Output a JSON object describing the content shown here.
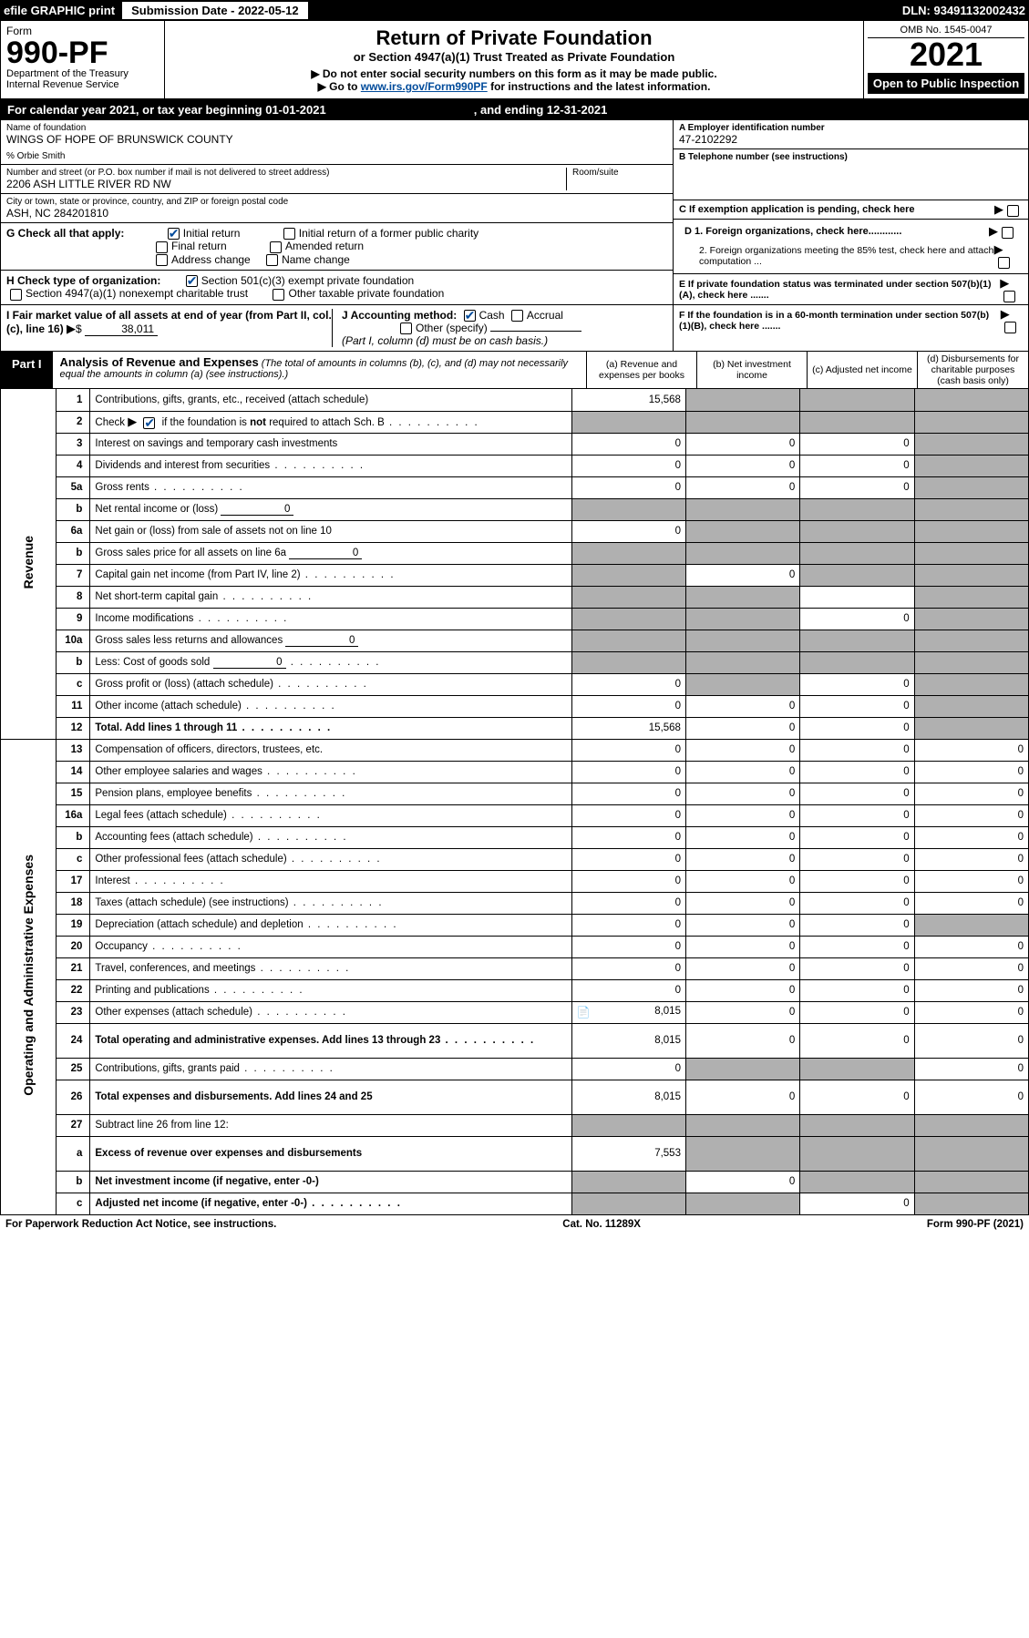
{
  "topbar": {
    "efile": "efile GRAPHIC print",
    "submission_label": "Submission Date - 2022-05-12",
    "dln": "DLN: 93491132002432"
  },
  "header": {
    "form_label": "Form",
    "form_number": "990-PF",
    "dept1": "Department of the Treasury",
    "dept2": "Internal Revenue Service",
    "title": "Return of Private Foundation",
    "subtitle": "or Section 4947(a)(1) Trust Treated as Private Foundation",
    "note1": "▶ Do not enter social security numbers on this form as it may be made public.",
    "note2_pre": "▶ Go to ",
    "note2_link": "www.irs.gov/Form990PF",
    "note2_post": " for instructions and the latest information.",
    "omb": "OMB No. 1545-0047",
    "year": "2021",
    "open": "Open to Public Inspection"
  },
  "calendar": {
    "pre": "For calendar year 2021, or tax year beginning 01-01-2021",
    "mid": ", and ending 12-31-2021"
  },
  "identity": {
    "name_label": "Name of foundation",
    "name_value": "WINGS OF HOPE OF BRUNSWICK COUNTY",
    "care_of": "% Orbie Smith",
    "addr_label": "Number and street (or P.O. box number if mail is not delivered to street address)",
    "room_label": "Room/suite",
    "addr_value": "2206 ASH LITTLE RIVER RD NW",
    "city_label": "City or town, state or province, country, and ZIP or foreign postal code",
    "city_value": "ASH, NC  284201810",
    "ein_label": "A Employer identification number",
    "ein_value": "47-2102292",
    "phone_label": "B Telephone number (see instructions)",
    "c_label": "C If exemption application is pending, check here",
    "d1_label": "D 1. Foreign organizations, check here............",
    "d2_label": "2. Foreign organizations meeting the 85% test, check here and attach computation ...",
    "e_label": "E  If private foundation status was terminated under section 507(b)(1)(A), check here .......",
    "f_label": "F  If the foundation is in a 60-month termination under section 507(b)(1)(B), check here .......",
    "g_label": "G Check all that apply:",
    "g_initial": "Initial return",
    "g_initial_former": "Initial return of a former public charity",
    "g_final": "Final return",
    "g_amended": "Amended return",
    "g_addr": "Address change",
    "g_name": "Name change",
    "h_label": "H Check type of organization:",
    "h_501c3": "Section 501(c)(3) exempt private foundation",
    "h_4947": "Section 4947(a)(1) nonexempt charitable trust",
    "h_other": "Other taxable private foundation",
    "i_label": "I Fair market value of all assets at end of year (from Part II, col. (c), line 16)",
    "i_value": "38,011",
    "j_label": "J Accounting method:",
    "j_cash": "Cash",
    "j_accrual": "Accrual",
    "j_other": "Other (specify)",
    "j_note": "(Part I, column (d) must be on cash basis.)"
  },
  "part1": {
    "label": "Part I",
    "title": "Analysis of Revenue and Expenses",
    "desc": "(The total of amounts in columns (b), (c), and (d) may not necessarily equal the amounts in column (a) (see instructions).)",
    "col_a": "(a)  Revenue and expenses per books",
    "col_b": "(b)  Net investment income",
    "col_c": "(c)  Adjusted net income",
    "col_d": "(d)  Disbursements for charitable purposes (cash basis only)"
  },
  "labels": {
    "revenue": "Revenue",
    "expenses": "Operating and Administrative Expenses"
  },
  "rows": [
    {
      "num": "1",
      "desc": "Contributions, gifts, grants, etc., received (attach schedule)",
      "a": "15,568",
      "b": "",
      "c": "",
      "d": "",
      "shade_b": true,
      "shade_c": true,
      "shade_d": true
    },
    {
      "num": "2",
      "desc": "Check ▶ ☑ if the foundation is not required to attach Sch. B",
      "dots": true,
      "a": "",
      "b": "",
      "c": "",
      "d": "",
      "shade_a": true,
      "shade_b": true,
      "shade_c": true,
      "shade_d": true,
      "has_check": true
    },
    {
      "num": "3",
      "desc": "Interest on savings and temporary cash investments",
      "a": "0",
      "b": "0",
      "c": "0",
      "d": "",
      "shade_d": true
    },
    {
      "num": "4",
      "desc": "Dividends and interest from securities",
      "dots": true,
      "a": "0",
      "b": "0",
      "c": "0",
      "d": "",
      "shade_d": true
    },
    {
      "num": "5a",
      "desc": "Gross rents",
      "dots": true,
      "a": "0",
      "b": "0",
      "c": "0",
      "d": "",
      "shade_d": true
    },
    {
      "num": "b",
      "desc": "Net rental income or (loss)",
      "inline_val": "0",
      "a": "",
      "b": "",
      "c": "",
      "d": "",
      "shade_a": true,
      "shade_b": true,
      "shade_c": true,
      "shade_d": true
    },
    {
      "num": "6a",
      "desc": "Net gain or (loss) from sale of assets not on line 10",
      "a": "0",
      "b": "",
      "c": "",
      "d": "",
      "shade_b": true,
      "shade_c": true,
      "shade_d": true
    },
    {
      "num": "b",
      "desc": "Gross sales price for all assets on line 6a",
      "inline_val": "0",
      "a": "",
      "b": "",
      "c": "",
      "d": "",
      "shade_a": true,
      "shade_b": true,
      "shade_c": true,
      "shade_d": true
    },
    {
      "num": "7",
      "desc": "Capital gain net income (from Part IV, line 2)",
      "dots": true,
      "a": "",
      "b": "0",
      "c": "",
      "d": "",
      "shade_a": true,
      "shade_c": true,
      "shade_d": true
    },
    {
      "num": "8",
      "desc": "Net short-term capital gain",
      "dots": true,
      "a": "",
      "b": "",
      "c": "",
      "d": "",
      "shade_a": true,
      "shade_b": true,
      "shade_d": true
    },
    {
      "num": "9",
      "desc": "Income modifications",
      "dots": true,
      "a": "",
      "b": "",
      "c": "0",
      "d": "",
      "shade_a": true,
      "shade_b": true,
      "shade_d": true
    },
    {
      "num": "10a",
      "desc": "Gross sales less returns and allowances",
      "inline_val": "0",
      "a": "",
      "b": "",
      "c": "",
      "d": "",
      "shade_a": true,
      "shade_b": true,
      "shade_c": true,
      "shade_d": true
    },
    {
      "num": "b",
      "desc": "Less: Cost of goods sold",
      "dots": true,
      "inline_val": "0",
      "a": "",
      "b": "",
      "c": "",
      "d": "",
      "shade_a": true,
      "shade_b": true,
      "shade_c": true,
      "shade_d": true
    },
    {
      "num": "c",
      "desc": "Gross profit or (loss) (attach schedule)",
      "dots": true,
      "a": "0",
      "b": "",
      "c": "0",
      "d": "",
      "shade_b": true,
      "shade_d": true
    },
    {
      "num": "11",
      "desc": "Other income (attach schedule)",
      "dots": true,
      "a": "0",
      "b": "0",
      "c": "0",
      "d": "",
      "shade_d": true
    },
    {
      "num": "12",
      "desc": "Total. Add lines 1 through 11",
      "dots": true,
      "bold": true,
      "a": "15,568",
      "b": "0",
      "c": "0",
      "d": "",
      "shade_d": true
    },
    {
      "num": "13",
      "desc": "Compensation of officers, directors, trustees, etc.",
      "a": "0",
      "b": "0",
      "c": "0",
      "d": "0"
    },
    {
      "num": "14",
      "desc": "Other employee salaries and wages",
      "dots": true,
      "a": "0",
      "b": "0",
      "c": "0",
      "d": "0"
    },
    {
      "num": "15",
      "desc": "Pension plans, employee benefits",
      "dots": true,
      "a": "0",
      "b": "0",
      "c": "0",
      "d": "0"
    },
    {
      "num": "16a",
      "desc": "Legal fees (attach schedule)",
      "dots": true,
      "a": "0",
      "b": "0",
      "c": "0",
      "d": "0"
    },
    {
      "num": "b",
      "desc": "Accounting fees (attach schedule)",
      "dots": true,
      "a": "0",
      "b": "0",
      "c": "0",
      "d": "0"
    },
    {
      "num": "c",
      "desc": "Other professional fees (attach schedule)",
      "dots": true,
      "a": "0",
      "b": "0",
      "c": "0",
      "d": "0"
    },
    {
      "num": "17",
      "desc": "Interest",
      "dots": true,
      "a": "0",
      "b": "0",
      "c": "0",
      "d": "0"
    },
    {
      "num": "18",
      "desc": "Taxes (attach schedule) (see instructions)",
      "dots": true,
      "a": "0",
      "b": "0",
      "c": "0",
      "d": "0"
    },
    {
      "num": "19",
      "desc": "Depreciation (attach schedule) and depletion",
      "dots": true,
      "a": "0",
      "b": "0",
      "c": "0",
      "d": "",
      "shade_d": true
    },
    {
      "num": "20",
      "desc": "Occupancy",
      "dots": true,
      "a": "0",
      "b": "0",
      "c": "0",
      "d": "0"
    },
    {
      "num": "21",
      "desc": "Travel, conferences, and meetings",
      "dots": true,
      "a": "0",
      "b": "0",
      "c": "0",
      "d": "0"
    },
    {
      "num": "22",
      "desc": "Printing and publications",
      "dots": true,
      "a": "0",
      "b": "0",
      "c": "0",
      "d": "0"
    },
    {
      "num": "23",
      "desc": "Other expenses (attach schedule)",
      "dots": true,
      "a": "8,015",
      "b": "0",
      "c": "0",
      "d": "0",
      "icon": true
    },
    {
      "num": "24",
      "desc": "Total operating and administrative expenses. Add lines 13 through 23",
      "dots": true,
      "bold": true,
      "a": "8,015",
      "b": "0",
      "c": "0",
      "d": "0",
      "tall": true
    },
    {
      "num": "25",
      "desc": "Contributions, gifts, grants paid",
      "dots": true,
      "a": "0",
      "b": "",
      "c": "",
      "d": "0",
      "shade_b": true,
      "shade_c": true
    },
    {
      "num": "26",
      "desc": "Total expenses and disbursements. Add lines 24 and 25",
      "bold": true,
      "a": "8,015",
      "b": "0",
      "c": "0",
      "d": "0",
      "tall": true
    },
    {
      "num": "27",
      "desc": "Subtract line 26 from line 12:",
      "a": "",
      "b": "",
      "c": "",
      "d": "",
      "shade_a": true,
      "shade_b": true,
      "shade_c": true,
      "shade_d": true
    },
    {
      "num": "a",
      "desc": "Excess of revenue over expenses and disbursements",
      "bold": true,
      "a": "7,553",
      "b": "",
      "c": "",
      "d": "",
      "shade_b": true,
      "shade_c": true,
      "shade_d": true,
      "tall": true
    },
    {
      "num": "b",
      "desc": "Net investment income (if negative, enter -0-)",
      "bold": true,
      "a": "",
      "b": "0",
      "c": "",
      "d": "",
      "shade_a": true,
      "shade_c": true,
      "shade_d": true
    },
    {
      "num": "c",
      "desc": "Adjusted net income (if negative, enter -0-)",
      "dots": true,
      "bold": true,
      "a": "",
      "b": "",
      "c": "0",
      "d": "",
      "shade_a": true,
      "shade_b": true,
      "shade_d": true
    }
  ],
  "footer": {
    "left": "For Paperwork Reduction Act Notice, see instructions.",
    "mid": "Cat. No. 11289X",
    "right": "Form 990-PF (2021)"
  }
}
